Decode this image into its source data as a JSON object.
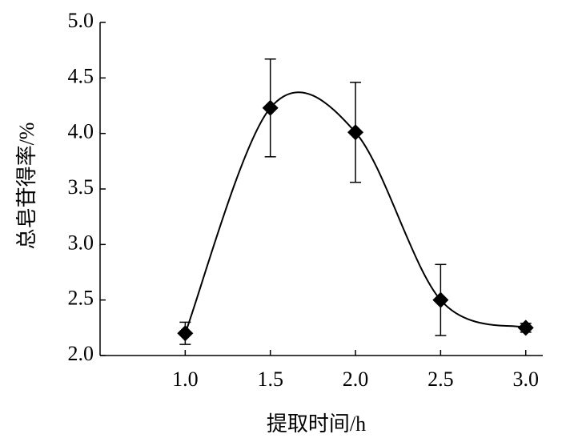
{
  "chart_data": {
    "type": "line",
    "x_label": "提取时间/h",
    "y_label": "总皂苷得率/%",
    "x": [
      1.0,
      1.5,
      2.0,
      2.5,
      3.0
    ],
    "values": [
      2.2,
      4.23,
      4.01,
      2.5,
      2.25
    ],
    "errors": [
      0.1,
      0.44,
      0.45,
      0.32,
      0.04
    ],
    "color": "#000000",
    "xlim": [
      0.5,
      3.1
    ],
    "xticks": [
      {
        "value": 1,
        "label": "1.0"
      },
      {
        "value": 1.5,
        "label": "1.5"
      },
      {
        "value": 2,
        "label": "2.0"
      },
      {
        "value": 2.5,
        "label": "2.5"
      },
      {
        "value": 3,
        "label": "3.0"
      }
    ],
    "ylim": [
      2,
      5
    ],
    "yticks": [
      {
        "value": 2,
        "label": "2.0"
      },
      {
        "value": 2.5,
        "label": "2.5"
      },
      {
        "value": 3,
        "label": "3.0"
      },
      {
        "value": 3.5,
        "label": "3.5"
      },
      {
        "value": 4,
        "label": "4.0"
      },
      {
        "value": 4.5,
        "label": "4.5"
      },
      {
        "value": 5,
        "label": "5.0"
      }
    ],
    "smooth": true
  }
}
